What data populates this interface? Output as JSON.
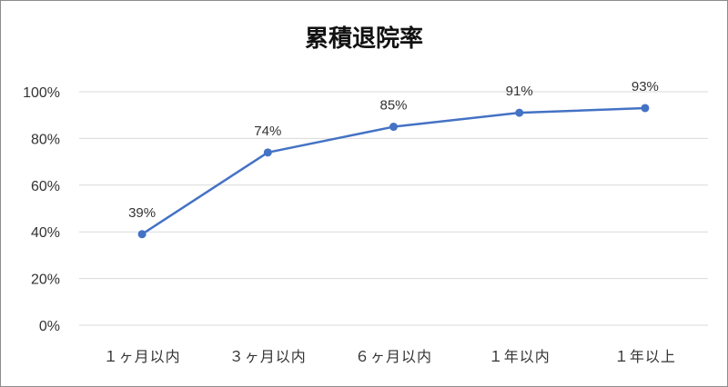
{
  "chart_data": {
    "type": "line",
    "title": "累積退院率",
    "categories": [
      "１ヶ月以内",
      "３ヶ月以内",
      "６ヶ月以内",
      "１年以内",
      "１年以上"
    ],
    "values": [
      39,
      74,
      85,
      91,
      93
    ],
    "data_labels": [
      "39%",
      "74%",
      "85%",
      "91%",
      "93%"
    ],
    "y_ticks": [
      "0%",
      "20%",
      "40%",
      "60%",
      "80%",
      "100%"
    ],
    "ylim": [
      0,
      100
    ],
    "grid": true,
    "legend": "none",
    "line_color": "#4472c4",
    "grid_color": "#d9d9d9"
  }
}
